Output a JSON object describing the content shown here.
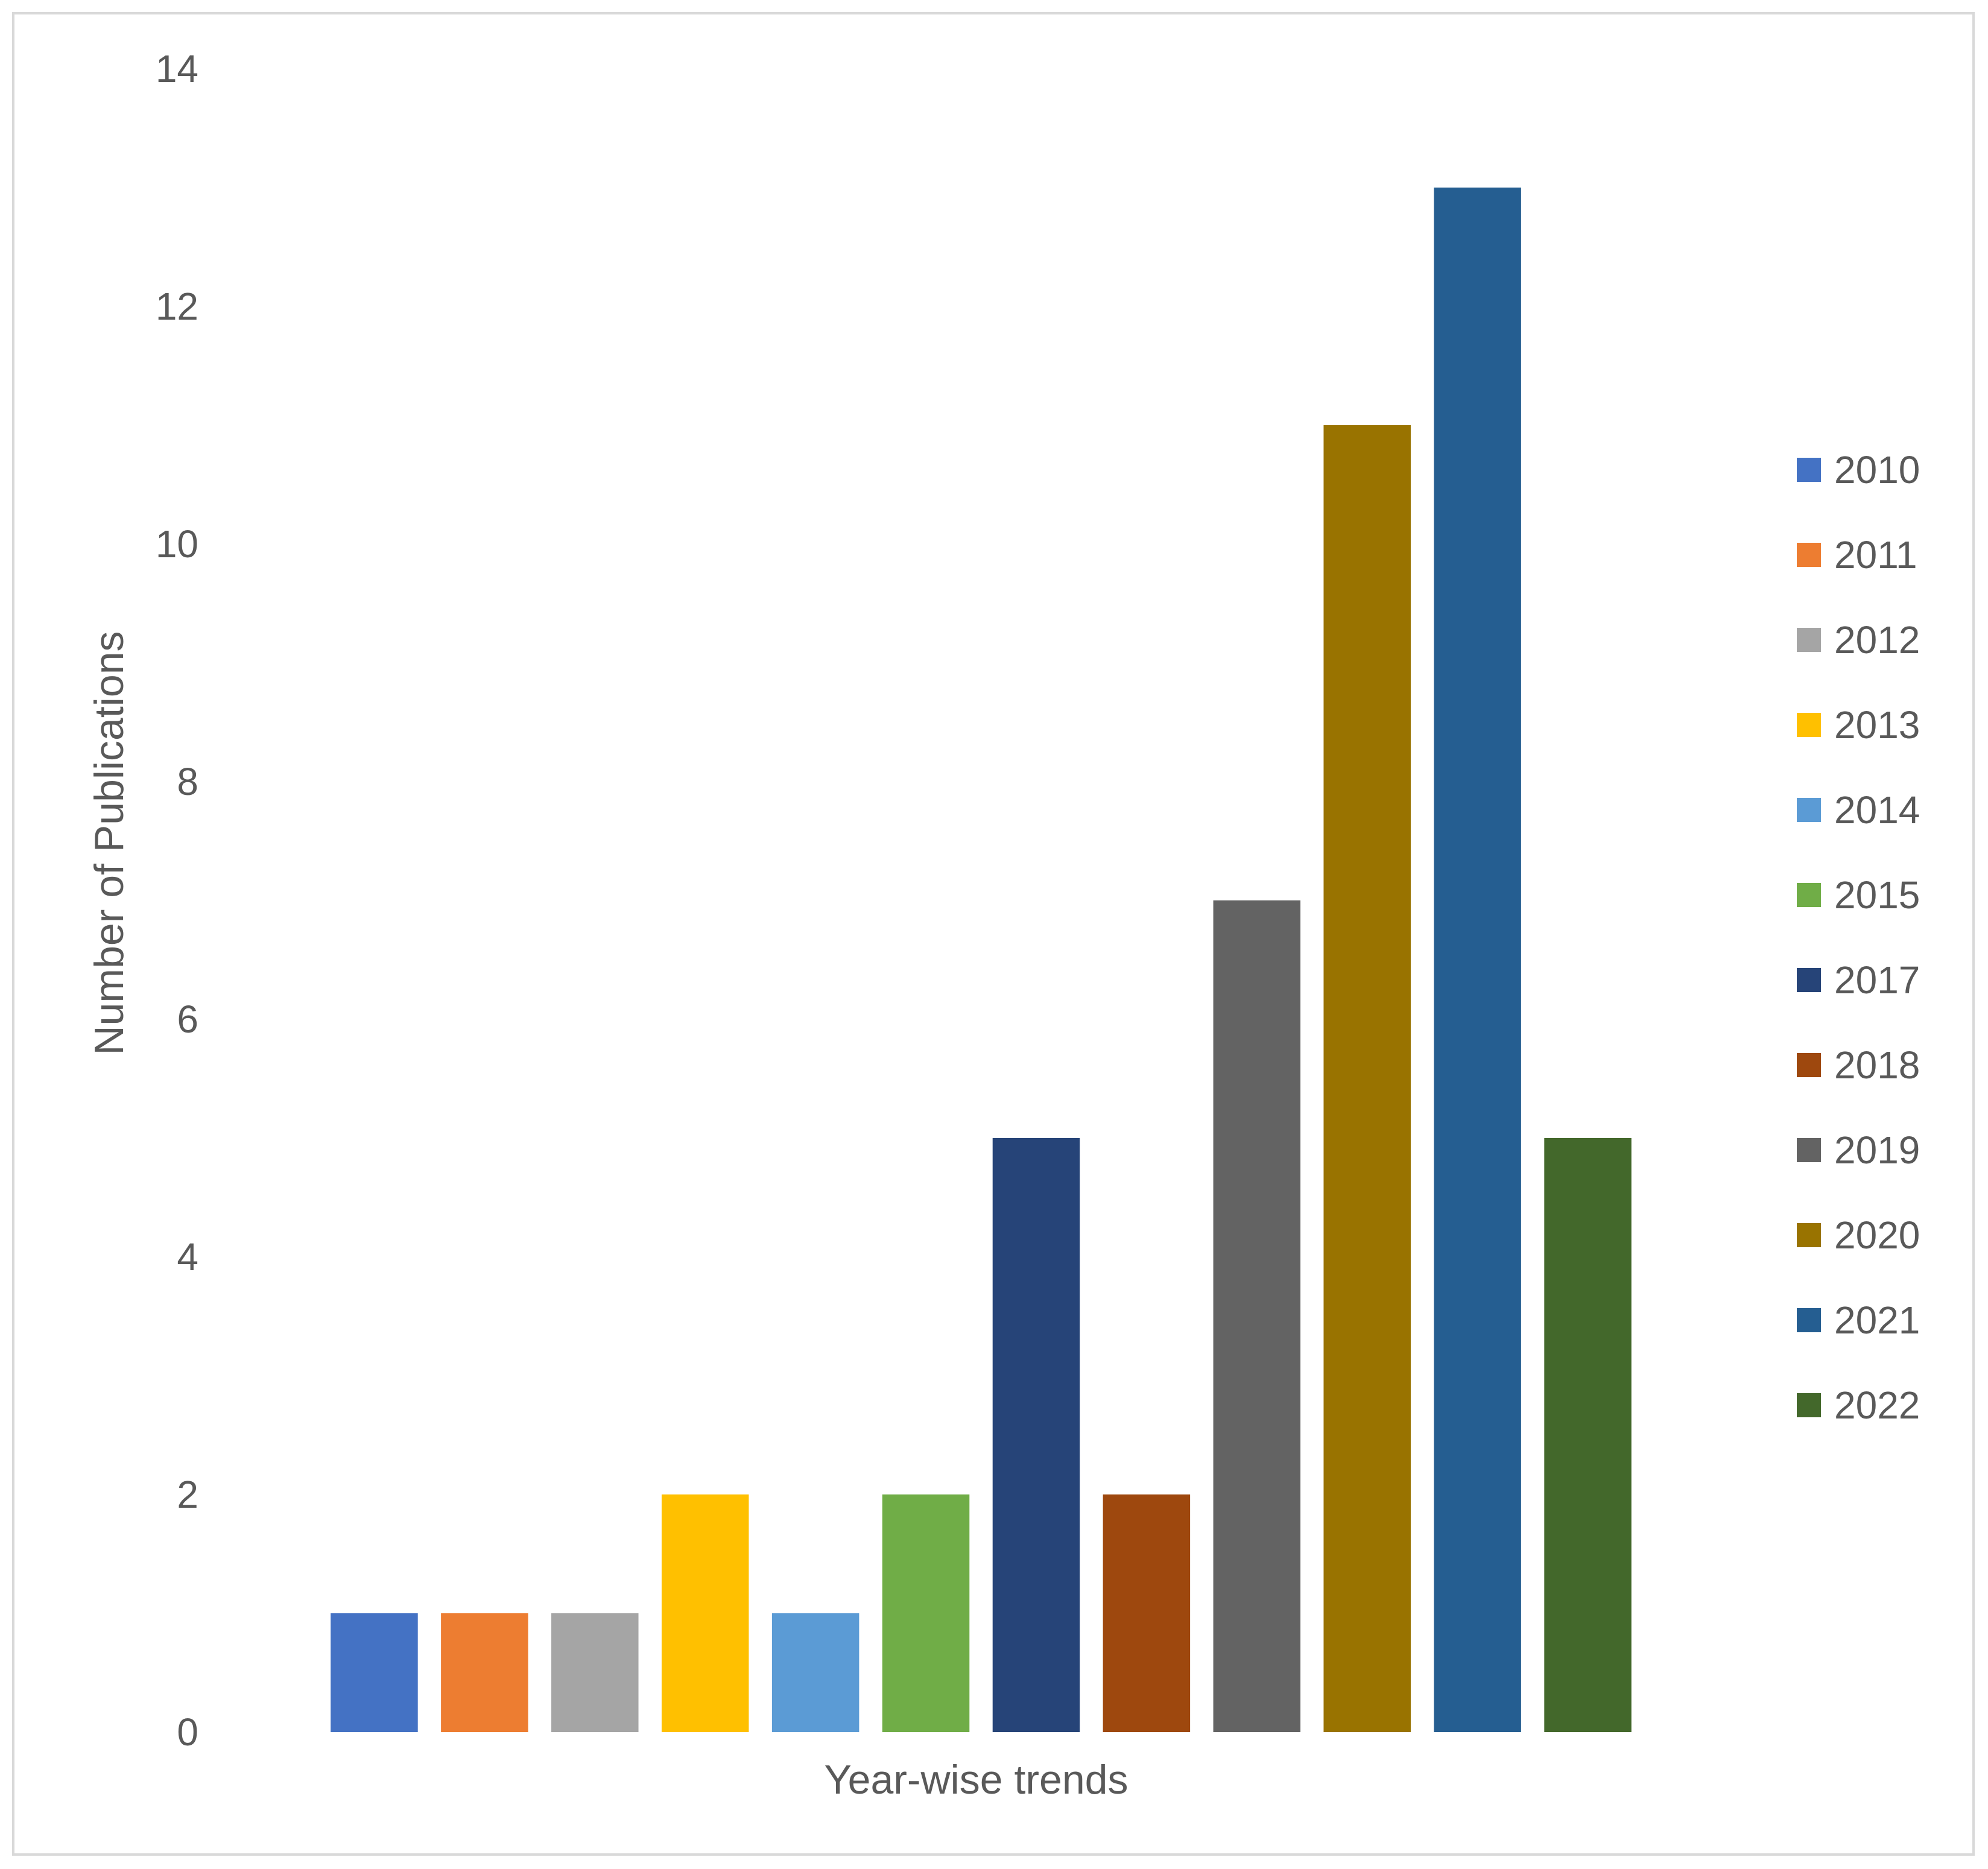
{
  "chart_data": {
    "type": "bar",
    "title": "",
    "xlabel": "Year-wise trends",
    "ylabel": "Number of Publications",
    "ylim": [
      0,
      14
    ],
    "yticks": [
      "0",
      "2",
      "4",
      "6",
      "8",
      "10",
      "12",
      "14"
    ],
    "grid": false,
    "legend_position": "right",
    "series": [
      {
        "name": "2010",
        "value": 1,
        "color": "#4472C4"
      },
      {
        "name": "2011",
        "value": 1,
        "color": "#ED7D31"
      },
      {
        "name": "2012",
        "value": 1,
        "color": "#A5A5A5"
      },
      {
        "name": "2013",
        "value": 2,
        "color": "#FFC000"
      },
      {
        "name": "2014",
        "value": 1,
        "color": "#5B9BD5"
      },
      {
        "name": "2015",
        "value": 2,
        "color": "#70AD47"
      },
      {
        "name": "2017",
        "value": 5,
        "color": "#264478"
      },
      {
        "name": "2018",
        "value": 2,
        "color": "#9E480E"
      },
      {
        "name": "2019",
        "value": 7,
        "color": "#636363"
      },
      {
        "name": "2020",
        "value": 11,
        "color": "#997300"
      },
      {
        "name": "2021",
        "value": 13,
        "color": "#255E91"
      },
      {
        "name": "2022",
        "value": 5,
        "color": "#43682B"
      }
    ]
  }
}
